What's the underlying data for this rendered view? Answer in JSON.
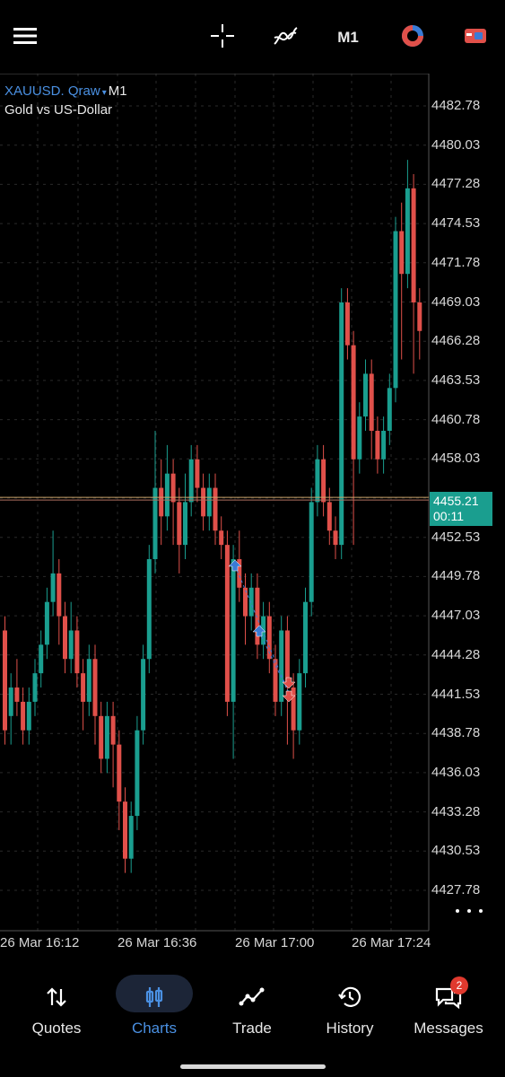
{
  "toolbar": {
    "timeframe": "M1",
    "icons": [
      "menu-icon",
      "crosshair-icon",
      "indicators-icon",
      "one-click-trading-icon",
      "account-icon"
    ]
  },
  "chart": {
    "symbol": "XAUUSD. Qraw",
    "symbol_arrow": "▾",
    "timeframe": "M1",
    "description": "Gold vs US-Dollar",
    "price_ticks": [
      "4482.78",
      "4480.03",
      "4477.28",
      "4474.53",
      "4471.78",
      "4469.03",
      "4466.28",
      "4463.53",
      "4460.78",
      "4458.03",
      "4452.53",
      "4449.78",
      "4447.03",
      "4444.28",
      "4441.53",
      "4438.78",
      "4436.03",
      "4433.28",
      "4430.53",
      "4427.78"
    ],
    "current_price": "4455.21",
    "current_countdown": "00:11",
    "time_ticks": [
      "26 Mar 16:12",
      "26 Mar 16:36",
      "26 Mar 17:00",
      "26 Mar 17:24"
    ],
    "colors": {
      "bull": "#1a9e8f",
      "bear": "#e0504a",
      "grid": "#2a2a2a",
      "bid_line": "#c9a36a",
      "ask_line": "#b07060",
      "arrow_buy": "#3a7bd5",
      "arrow_sell": "#e0504a"
    }
  },
  "nav": {
    "items": [
      {
        "label": "Quotes",
        "icon": "quotes-icon"
      },
      {
        "label": "Charts",
        "icon": "charts-icon"
      },
      {
        "label": "Trade",
        "icon": "trade-icon"
      },
      {
        "label": "History",
        "icon": "history-icon"
      },
      {
        "label": "Messages",
        "icon": "messages-icon"
      }
    ],
    "messages_badge": "2"
  }
}
